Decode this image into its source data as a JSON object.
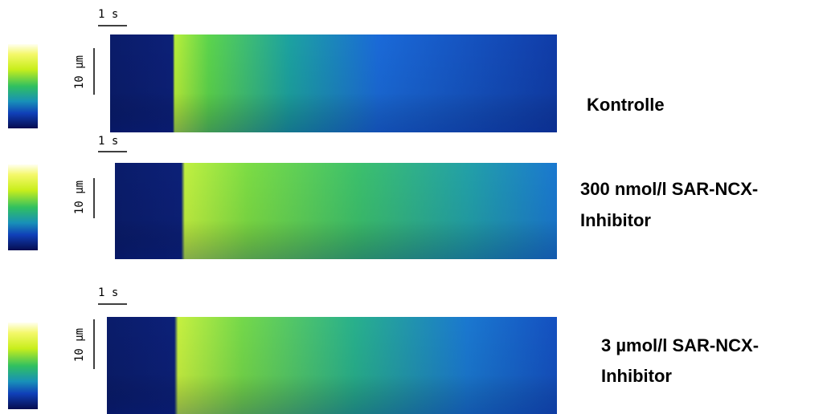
{
  "panels": [
    {
      "time_scale": "1 s",
      "space_scale": "10 µm",
      "label": [
        "Kontrolle"
      ]
    },
    {
      "time_scale": "1 s",
      "space_scale": "10 µm",
      "label": [
        "300 nmol/l SAR-NCX-",
        "Inhibitor"
      ]
    },
    {
      "time_scale": "1 s",
      "space_scale": "10 µm",
      "label": [
        "3 µmol/l SAR-NCX-",
        "Inhibitor"
      ]
    }
  ]
}
